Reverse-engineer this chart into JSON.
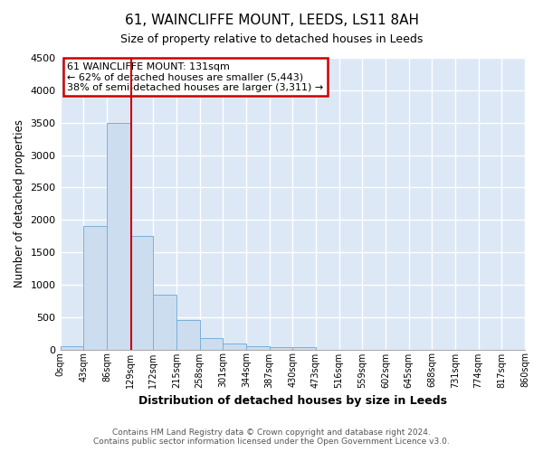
{
  "title": "61, WAINCLIFFE MOUNT, LEEDS, LS11 8AH",
  "subtitle": "Size of property relative to detached houses in Leeds",
  "xlabel": "Distribution of detached houses by size in Leeds",
  "ylabel": "Number of detached properties",
  "bar_color": "#ccddf0",
  "bar_edge_color": "#7ab0d8",
  "background_color": "#dce8f5",
  "grid_color": "#ffffff",
  "bin_edges": [
    0,
    43,
    86,
    129,
    172,
    215,
    258,
    301,
    344,
    387,
    430,
    473,
    516,
    559,
    602,
    645,
    688,
    731,
    774,
    817,
    860
  ],
  "bin_labels": [
    "0sqm",
    "43sqm",
    "86sqm",
    "129sqm",
    "172sqm",
    "215sqm",
    "258sqm",
    "301sqm",
    "344sqm",
    "387sqm",
    "430sqm",
    "473sqm",
    "516sqm",
    "559sqm",
    "602sqm",
    "645sqm",
    "688sqm",
    "731sqm",
    "774sqm",
    "817sqm",
    "860sqm"
  ],
  "bar_heights": [
    50,
    1900,
    3500,
    1750,
    850,
    450,
    175,
    90,
    55,
    40,
    30,
    0,
    0,
    0,
    0,
    0,
    0,
    0,
    0,
    0
  ],
  "ylim": [
    0,
    4500
  ],
  "yticks": [
    0,
    500,
    1000,
    1500,
    2000,
    2500,
    3000,
    3500,
    4000,
    4500
  ],
  "property_line_x": 131,
  "annotation_line1": "61 WAINCLIFFE MOUNT: 131sqm",
  "annotation_line2": "← 62% of detached houses are smaller (5,443)",
  "annotation_line3": "38% of semi-detached houses are larger (3,311) →",
  "annotation_box_color": "#ffffff",
  "annotation_box_edge_color": "#cc0000",
  "property_line_color": "#cc0000",
  "footnote1": "Contains HM Land Registry data © Crown copyright and database right 2024.",
  "footnote2": "Contains public sector information licensed under the Open Government Licence v3.0."
}
